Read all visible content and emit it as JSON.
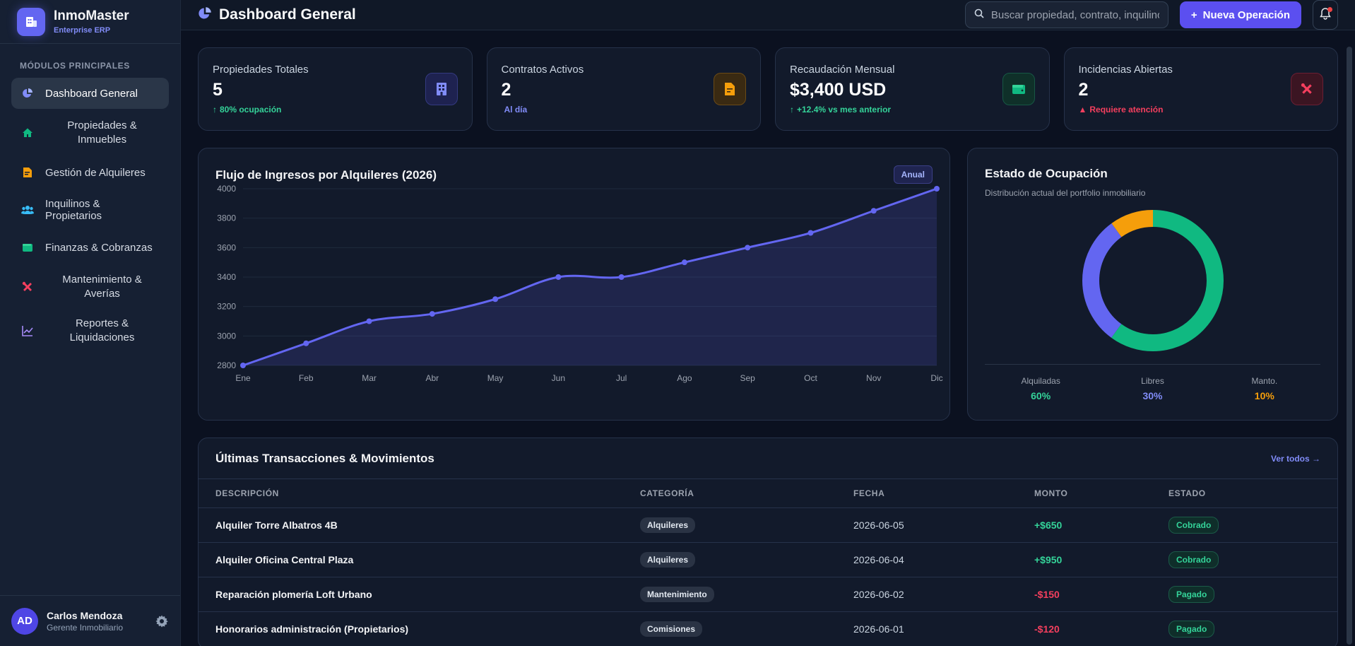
{
  "brand": {
    "name": "InmoMaster",
    "sub": "Enterprise ERP"
  },
  "sidebar": {
    "section_title": "MÓDULOS PRINCIPALES",
    "items": [
      {
        "label": "Dashboard General",
        "icon": "pie-chart-icon",
        "active": true
      },
      {
        "label": "Propiedades & Inmuebles",
        "icon": "home-icon"
      },
      {
        "label": "Gestión de Alquileres",
        "icon": "file-contract-icon"
      },
      {
        "label": "Inquilinos & Propietarios",
        "icon": "users-icon"
      },
      {
        "label": "Finanzas & Cobranzas",
        "icon": "wallet-icon"
      },
      {
        "label": "Mantenimiento & Averías",
        "icon": "tools-icon"
      },
      {
        "label": "Reportes & Liquidaciones",
        "icon": "chart-line-icon"
      }
    ]
  },
  "user": {
    "initials": "AD",
    "name": "Carlos Mendoza",
    "role": "Gerente Inmobiliario"
  },
  "header": {
    "title": "Dashboard General",
    "search_placeholder": "Buscar propiedad, contrato, inquilino...",
    "new_button": "Nueva Operación"
  },
  "stats": [
    {
      "label": "Propiedades Totales",
      "value": "5",
      "sub": "80% ocupación",
      "sub_color": "#34d399",
      "icon": "building-icon",
      "accent": "#818cf8"
    },
    {
      "label": "Contratos Activos",
      "value": "2",
      "sub": "Al día",
      "sub_color": "#818cf8",
      "icon": "file-contract-icon",
      "accent": "#f59e0b"
    },
    {
      "label": "Recaudación Mensual",
      "value": "$3,400 USD",
      "sub": "+12.4% vs mes anterior",
      "sub_color": "#34d399",
      "icon": "wallet-icon",
      "accent": "#10b981"
    },
    {
      "label": "Incidencias Abiertas",
      "value": "2",
      "sub": "Requiere atención",
      "sub_color": "#f43f5e",
      "icon": "tools-icon",
      "accent": "#f43f5e"
    }
  ],
  "chart_card": {
    "title": "Flujo de Ingresos por Alquileres (2026)",
    "badge": "Anual"
  },
  "chart_data": {
    "type": "area",
    "title": "Flujo de Ingresos por Alquileres (2026)",
    "categories": [
      "Ene",
      "Feb",
      "Mar",
      "Abr",
      "May",
      "Jun",
      "Jul",
      "Ago",
      "Sep",
      "Oct",
      "Nov",
      "Dic"
    ],
    "series": [
      {
        "values": [
          2800,
          2950,
          3100,
          3150,
          3250,
          3400,
          3400,
          3500,
          3600,
          3700,
          3850,
          4000
        ]
      }
    ],
    "y_ticks": [
      2800,
      3000,
      3200,
      3400,
      3600,
      3800,
      4000
    ],
    "ylim": [
      2800,
      4000
    ],
    "grid": true,
    "color": "#6366f1"
  },
  "occupancy": {
    "title": "Estado de Ocupación",
    "subtitle": "Distribución actual del portfolio inmobiliario",
    "segments": [
      {
        "name": "Alquiladas",
        "pct_label": "60%",
        "value": 60,
        "color": "#10b981"
      },
      {
        "name": "Libres",
        "pct_label": "30%",
        "value": 30,
        "color": "#6366f1"
      },
      {
        "name": "Manto.",
        "pct_label": "10%",
        "value": 10,
        "color": "#f59e0b"
      }
    ]
  },
  "transactions": {
    "title": "Últimas Transacciones & Movimientos",
    "link": "Ver todos →",
    "columns": [
      "DESCRIPCIÓN",
      "CATEGORÍA",
      "FECHA",
      "MONTO",
      "ESTADO"
    ],
    "rows": [
      {
        "desc": "Alquiler Torre Albatros 4B",
        "cat": "Alquileres",
        "date": "2026-06-05",
        "amount": "+$650",
        "amount_color": "#34d399",
        "status": "Cobrado"
      },
      {
        "desc": "Alquiler Oficina Central Plaza",
        "cat": "Alquileres",
        "date": "2026-06-04",
        "amount": "+$950",
        "amount_color": "#34d399",
        "status": "Cobrado"
      },
      {
        "desc": "Reparación plomería Loft Urbano",
        "cat": "Mantenimiento",
        "date": "2026-06-02",
        "amount": "-$150",
        "amount_color": "#f43f5e",
        "status": "Pagado"
      },
      {
        "desc": "Honorarios administración (Propietarios)",
        "cat": "Comisiones",
        "date": "2026-06-01",
        "amount": "-$120",
        "amount_color": "#f43f5e",
        "status": "Pagado"
      }
    ]
  }
}
